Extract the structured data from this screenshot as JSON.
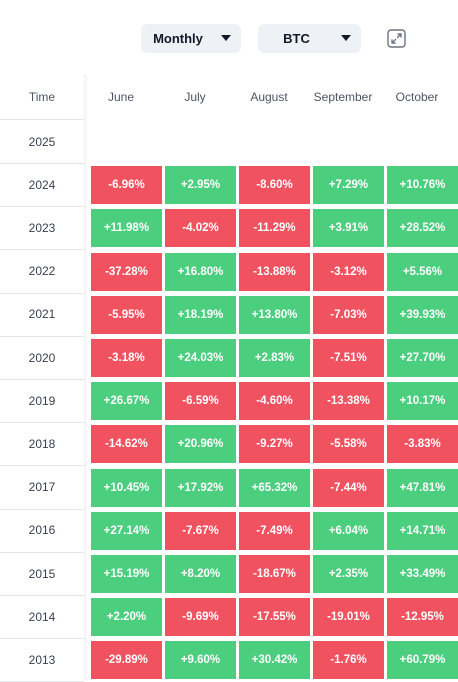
{
  "toolbar": {
    "period_select": "Monthly",
    "asset_select": "BTC"
  },
  "table": {
    "time_header": "Time",
    "months": [
      "June",
      "July",
      "August",
      "September",
      "October"
    ],
    "rows": [
      {
        "year": "2025",
        "values": [
          "",
          "",
          "",
          "",
          ""
        ]
      },
      {
        "year": "2024",
        "values": [
          "-6.96%",
          "+2.95%",
          "-8.60%",
          "+7.29%",
          "+10.76%"
        ]
      },
      {
        "year": "2023",
        "values": [
          "+11.98%",
          "-4.02%",
          "-11.29%",
          "+3.91%",
          "+28.52%"
        ]
      },
      {
        "year": "2022",
        "values": [
          "-37.28%",
          "+16.80%",
          "-13.88%",
          "-3.12%",
          "+5.56%"
        ]
      },
      {
        "year": "2021",
        "values": [
          "-5.95%",
          "+18.19%",
          "+13.80%",
          "-7.03%",
          "+39.93%"
        ]
      },
      {
        "year": "2020",
        "values": [
          "-3.18%",
          "+24.03%",
          "+2.83%",
          "-7.51%",
          "+27.70%"
        ]
      },
      {
        "year": "2019",
        "values": [
          "+26.67%",
          "-6.59%",
          "-4.60%",
          "-13.38%",
          "+10.17%"
        ]
      },
      {
        "year": "2018",
        "values": [
          "-14.62%",
          "+20.96%",
          "-9.27%",
          "-5.58%",
          "-3.83%"
        ]
      },
      {
        "year": "2017",
        "values": [
          "+10.45%",
          "+17.92%",
          "+65.32%",
          "-7.44%",
          "+47.81%"
        ]
      },
      {
        "year": "2016",
        "values": [
          "+27.14%",
          "-7.67%",
          "-7.49%",
          "+6.04%",
          "+14.71%"
        ]
      },
      {
        "year": "2015",
        "values": [
          "+15.19%",
          "+8.20%",
          "-18.67%",
          "+2.35%",
          "+33.49%"
        ]
      },
      {
        "year": "2014",
        "values": [
          "+2.20%",
          "-9.69%",
          "-17.55%",
          "-19.01%",
          "-12.95%"
        ]
      },
      {
        "year": "2013",
        "values": [
          "-29.89%",
          "+9.60%",
          "+30.42%",
          "-1.76%",
          "+60.79%"
        ]
      }
    ]
  },
  "colors": {
    "positive": "#4cce7f",
    "negative": "#f05260"
  }
}
